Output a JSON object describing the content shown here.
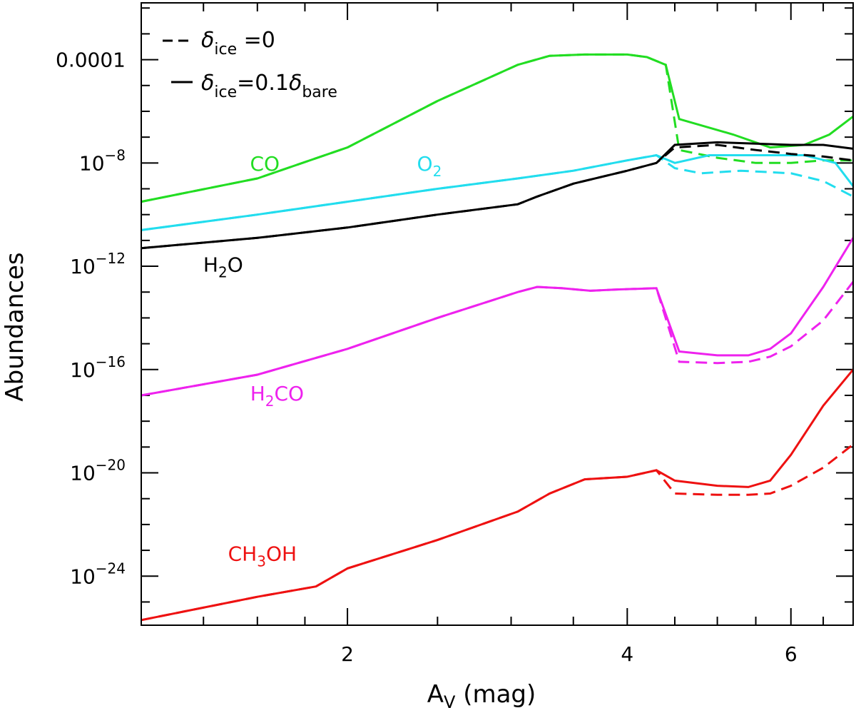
{
  "chart_data": {
    "type": "line",
    "title": "",
    "xlabel": {
      "main": "A",
      "sub": "V",
      "unit": " (mag)"
    },
    "ylabel": "Abundances",
    "xscale": "log",
    "yscale": "log",
    "xlim": [
      1.2,
      7.0
    ],
    "ylim_log10": [
      -25.9,
      -1.8
    ],
    "x_ticks": [
      {
        "value": 2,
        "label": "2"
      },
      {
        "value": 4,
        "label": "4"
      },
      {
        "value": 6,
        "label": "6"
      }
    ],
    "y_ticks": [
      {
        "log10": -4,
        "label": "0.0001",
        "mant": "",
        "exp": ""
      },
      {
        "log10": -8,
        "label": "",
        "mant": "10",
        "exp": "−8"
      },
      {
        "log10": -12,
        "label": "",
        "mant": "10",
        "exp": "−12"
      },
      {
        "log10": -16,
        "label": "",
        "mant": "10",
        "exp": "−16"
      },
      {
        "log10": -20,
        "label": "",
        "mant": "10",
        "exp": "−20"
      },
      {
        "log10": -24,
        "label": "",
        "mant": "10",
        "exp": "−24"
      }
    ],
    "legend": {
      "position": "top-left",
      "dashed": {
        "delta": "δ",
        "sub": "ice",
        "rest": " =0"
      },
      "solid": {
        "delta": "δ",
        "sub": "ice",
        "eq": "=0.1",
        "delta2": "δ",
        "sub2": "bare"
      }
    },
    "series": [
      {
        "name": "CO",
        "color": "#22dd22",
        "label": {
          "main": "CO",
          "sub": "",
          "tail": ""
        },
        "label_at": [
          1.63,
          -8.3
        ],
        "solid_pts": [
          [
            1.2,
            -9.5
          ],
          [
            1.6,
            -8.6
          ],
          [
            2.0,
            -7.4
          ],
          [
            2.5,
            -5.6
          ],
          [
            3.05,
            -4.2
          ],
          [
            3.3,
            -3.85
          ],
          [
            3.6,
            -3.8
          ],
          [
            4.0,
            -3.8
          ],
          [
            4.2,
            -3.9
          ],
          [
            4.4,
            -4.2
          ],
          [
            4.55,
            -6.3
          ],
          [
            5.2,
            -6.9
          ],
          [
            5.7,
            -7.4
          ],
          [
            6.2,
            -7.3
          ],
          [
            6.6,
            -6.9
          ],
          [
            7.0,
            -6.2
          ]
        ],
        "dashed_pts": [
          [
            1.2,
            -9.5
          ],
          [
            1.6,
            -8.6
          ],
          [
            2.0,
            -7.4
          ],
          [
            2.5,
            -5.6
          ],
          [
            3.05,
            -4.2
          ],
          [
            3.3,
            -3.85
          ],
          [
            3.6,
            -3.8
          ],
          [
            4.0,
            -3.8
          ],
          [
            4.2,
            -3.9
          ],
          [
            4.4,
            -4.2
          ],
          [
            4.55,
            -7.5
          ],
          [
            5.0,
            -7.8
          ],
          [
            5.5,
            -8.0
          ],
          [
            6.0,
            -8.0
          ],
          [
            6.5,
            -7.9
          ],
          [
            7.0,
            -7.9
          ]
        ]
      },
      {
        "name": "O2",
        "color": "#22ddee",
        "label": {
          "main": "O",
          "sub": "2",
          "tail": ""
        },
        "label_at": [
          2.45,
          -8.3
        ],
        "solid_pts": [
          [
            1.2,
            -10.6
          ],
          [
            1.6,
            -10.0
          ],
          [
            2.0,
            -9.5
          ],
          [
            2.5,
            -9.0
          ],
          [
            3.05,
            -8.6
          ],
          [
            3.5,
            -8.3
          ],
          [
            4.0,
            -7.9
          ],
          [
            4.3,
            -7.7
          ],
          [
            4.5,
            -8.0
          ],
          [
            4.9,
            -7.7
          ],
          [
            5.5,
            -7.7
          ],
          [
            6.2,
            -7.7
          ],
          [
            6.7,
            -8.0
          ],
          [
            7.0,
            -8.9
          ]
        ],
        "dashed_pts": [
          [
            1.2,
            -10.6
          ],
          [
            1.6,
            -10.0
          ],
          [
            2.0,
            -9.5
          ],
          [
            2.5,
            -9.0
          ],
          [
            3.05,
            -8.6
          ],
          [
            3.5,
            -8.3
          ],
          [
            4.0,
            -7.9
          ],
          [
            4.3,
            -7.7
          ],
          [
            4.5,
            -8.2
          ],
          [
            4.8,
            -8.4
          ],
          [
            5.3,
            -8.3
          ],
          [
            6.0,
            -8.4
          ],
          [
            6.5,
            -8.7
          ],
          [
            7.0,
            -9.3
          ]
        ]
      },
      {
        "name": "H2O",
        "color": "#000000",
        "label": {
          "main": "H",
          "sub": "2",
          "tail": "O"
        },
        "label_at": [
          1.47,
          -12.2
        ],
        "solid_pts": [
          [
            1.2,
            -11.3
          ],
          [
            1.6,
            -10.9
          ],
          [
            2.0,
            -10.5
          ],
          [
            2.5,
            -10.0
          ],
          [
            3.05,
            -9.6
          ],
          [
            3.2,
            -9.3
          ],
          [
            3.5,
            -8.8
          ],
          [
            4.0,
            -8.3
          ],
          [
            4.3,
            -8.0
          ],
          [
            4.5,
            -7.3
          ],
          [
            5.0,
            -7.2
          ],
          [
            5.5,
            -7.25
          ],
          [
            6.0,
            -7.3
          ],
          [
            6.5,
            -7.3
          ],
          [
            7.0,
            -7.45
          ]
        ],
        "dashed_pts": [
          [
            1.2,
            -11.3
          ],
          [
            1.6,
            -10.9
          ],
          [
            2.0,
            -10.5
          ],
          [
            2.5,
            -10.0
          ],
          [
            3.05,
            -9.6
          ],
          [
            3.2,
            -9.3
          ],
          [
            3.5,
            -8.8
          ],
          [
            4.0,
            -8.3
          ],
          [
            4.3,
            -8.0
          ],
          [
            4.5,
            -7.4
          ],
          [
            5.0,
            -7.3
          ],
          [
            5.5,
            -7.5
          ],
          [
            6.0,
            -7.65
          ],
          [
            6.5,
            -7.75
          ],
          [
            7.0,
            -7.9
          ]
        ]
      },
      {
        "name": "H2CO",
        "color": "#ee22ee",
        "label": {
          "main": "H",
          "sub": "2",
          "tail": "CO"
        },
        "label_at": [
          1.68,
          -17.2
        ],
        "solid_pts": [
          [
            1.2,
            -17.0
          ],
          [
            1.6,
            -16.2
          ],
          [
            2.0,
            -15.2
          ],
          [
            2.5,
            -14.0
          ],
          [
            3.05,
            -13.0
          ],
          [
            3.2,
            -12.8
          ],
          [
            3.4,
            -12.85
          ],
          [
            3.65,
            -12.95
          ],
          [
            3.9,
            -12.9
          ],
          [
            4.3,
            -12.85
          ],
          [
            4.55,
            -15.3
          ],
          [
            5.0,
            -15.45
          ],
          [
            5.4,
            -15.45
          ],
          [
            5.7,
            -15.2
          ],
          [
            6.0,
            -14.6
          ],
          [
            6.5,
            -12.8
          ],
          [
            7.0,
            -10.9
          ]
        ],
        "dashed_pts": [
          [
            1.2,
            -17.0
          ],
          [
            1.6,
            -16.2
          ],
          [
            2.0,
            -15.2
          ],
          [
            2.5,
            -14.0
          ],
          [
            3.05,
            -13.0
          ],
          [
            3.2,
            -12.8
          ],
          [
            3.4,
            -12.85
          ],
          [
            3.65,
            -12.95
          ],
          [
            3.9,
            -12.9
          ],
          [
            4.3,
            -12.85
          ],
          [
            4.55,
            -15.7
          ],
          [
            5.0,
            -15.75
          ],
          [
            5.4,
            -15.7
          ],
          [
            5.7,
            -15.5
          ],
          [
            6.0,
            -15.1
          ],
          [
            6.5,
            -14.1
          ],
          [
            7.0,
            -12.6
          ]
        ]
      },
      {
        "name": "CH3OH",
        "color": "#ee1111",
        "label": {
          "main": "CH",
          "sub": "3",
          "tail": "OH"
        },
        "label_at": [
          1.62,
          -23.4
        ],
        "solid_pts": [
          [
            1.2,
            -25.7
          ],
          [
            1.6,
            -24.8
          ],
          [
            1.85,
            -24.4
          ],
          [
            2.0,
            -23.7
          ],
          [
            2.5,
            -22.6
          ],
          [
            3.05,
            -21.5
          ],
          [
            3.3,
            -20.8
          ],
          [
            3.6,
            -20.25
          ],
          [
            4.0,
            -20.15
          ],
          [
            4.3,
            -19.9
          ],
          [
            4.5,
            -20.3
          ],
          [
            5.0,
            -20.5
          ],
          [
            5.4,
            -20.55
          ],
          [
            5.7,
            -20.3
          ],
          [
            6.0,
            -19.3
          ],
          [
            6.5,
            -17.4
          ],
          [
            7.0,
            -16.0
          ]
        ],
        "dashed_pts": [
          [
            1.2,
            -25.7
          ],
          [
            1.6,
            -24.8
          ],
          [
            1.85,
            -24.4
          ],
          [
            2.0,
            -23.7
          ],
          [
            2.5,
            -22.6
          ],
          [
            3.05,
            -21.5
          ],
          [
            3.3,
            -20.8
          ],
          [
            3.6,
            -20.25
          ],
          [
            4.0,
            -20.15
          ],
          [
            4.3,
            -19.9
          ],
          [
            4.5,
            -20.8
          ],
          [
            5.0,
            -20.85
          ],
          [
            5.4,
            -20.85
          ],
          [
            5.7,
            -20.8
          ],
          [
            6.0,
            -20.5
          ],
          [
            6.5,
            -19.8
          ],
          [
            7.0,
            -18.9
          ]
        ]
      }
    ]
  }
}
